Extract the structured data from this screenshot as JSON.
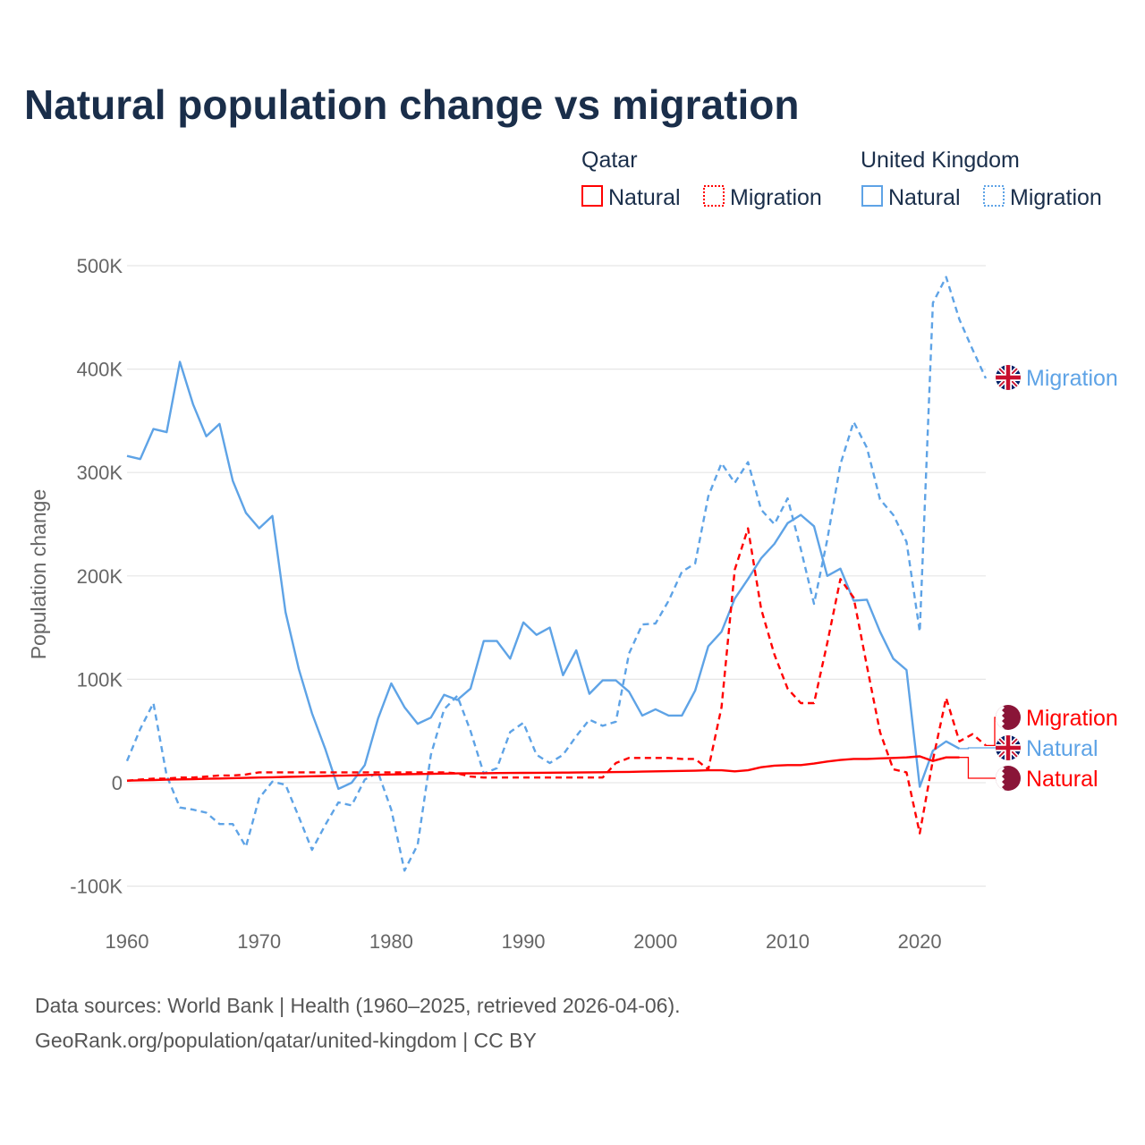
{
  "chart_data": {
    "type": "line",
    "title": "Natural population change vs migration",
    "xlabel": "",
    "ylabel": "Population change",
    "xlim": [
      1960,
      2025
    ],
    "ylim": [
      -100000,
      500000
    ],
    "x_ticks": [
      "1960",
      "1970",
      "1980",
      "1990",
      "2000",
      "2010",
      "2020"
    ],
    "y_ticks": [
      {
        "value": 500000,
        "label": "500K"
      },
      {
        "value": 400000,
        "label": "400K"
      },
      {
        "value": 300000,
        "label": "300K"
      },
      {
        "value": 200000,
        "label": "200K"
      },
      {
        "value": 100000,
        "label": "100K"
      },
      {
        "value": 0,
        "label": "0"
      },
      {
        "value": -100000,
        "label": "-100K"
      }
    ],
    "grid": true,
    "legend": {
      "placement": "top-right",
      "groups": [
        {
          "name": "Qatar",
          "items": [
            "Natural",
            "Migration"
          ]
        },
        {
          "name": "United Kingdom",
          "items": [
            "Natural",
            "Migration"
          ]
        }
      ]
    },
    "series": [
      {
        "name": "United Kingdom Migration",
        "country": "United Kingdom",
        "kind": "Migration",
        "color": "#5ea3e6",
        "dashed": true,
        "start_year": 1960,
        "end_label": "Migration",
        "values_k": [
          21,
          52,
          77,
          7,
          -24,
          -26,
          -29,
          -40,
          -40,
          -62,
          -15,
          1,
          -2,
          -33,
          -65,
          -41,
          -19,
          -22,
          3,
          10,
          -26,
          -85,
          -60,
          27,
          71,
          84,
          50,
          9,
          14,
          49,
          58,
          27,
          19,
          27,
          45,
          61,
          55,
          59,
          125,
          153,
          154,
          176,
          204,
          212,
          277,
          309,
          290,
          310,
          264,
          250,
          275,
          226,
          173,
          235,
          308,
          349,
          324,
          274,
          259,
          233,
          146,
          464,
          489,
          448,
          419,
          391
        ]
      },
      {
        "name": "United Kingdom Natural",
        "country": "United Kingdom",
        "kind": "Natural",
        "color": "#5ea3e6",
        "dashed": false,
        "start_year": 1960,
        "end_label": "Natural",
        "values_k": [
          316,
          313,
          342,
          339,
          407,
          366,
          335,
          347,
          292,
          261,
          246,
          258,
          165,
          110,
          67,
          33,
          -6,
          0,
          17,
          62,
          96,
          73,
          57,
          63,
          85,
          80,
          91,
          137,
          137,
          120,
          155,
          143,
          150,
          104,
          128,
          86,
          99,
          99,
          88,
          65,
          71,
          65,
          65,
          89,
          132,
          146,
          178,
          197,
          217,
          231,
          251,
          259,
          248,
          200,
          207,
          176,
          177,
          146,
          120,
          109,
          -4,
          31,
          40,
          33
        ]
      },
      {
        "name": "Qatar Migration",
        "country": "Qatar",
        "kind": "Migration",
        "color": "#ff0000",
        "dashed": true,
        "start_year": 1960,
        "end_label": "Migration",
        "values_k": [
          2,
          3,
          4,
          4,
          5,
          5,
          6,
          7,
          7,
          8,
          10,
          10,
          10,
          10,
          10,
          10,
          10,
          10,
          10,
          10,
          10,
          10,
          10,
          10,
          10,
          9,
          6,
          5,
          5,
          5,
          5,
          5,
          5,
          5,
          5,
          5,
          5,
          19,
          24,
          24,
          24,
          24,
          23,
          23,
          13,
          73,
          206,
          246,
          168,
          124,
          91,
          77,
          77,
          135,
          197,
          179,
          113,
          49,
          13,
          10,
          -49,
          22,
          82,
          40,
          47,
          36
        ]
      },
      {
        "name": "Qatar Natural",
        "country": "Qatar",
        "kind": "Natural",
        "color": "#ff0000",
        "dashed": false,
        "start_year": 1960,
        "end_label": "Natural",
        "values_k": [
          2,
          2.3,
          2.6,
          2.9,
          3.2,
          3.5,
          3.8,
          4.1,
          4.4,
          4.7,
          5,
          5.3,
          5.6,
          5.9,
          6.2,
          6.5,
          6.8,
          7.1,
          7.4,
          7.7,
          8,
          8.2,
          8.4,
          8.6,
          8.8,
          9,
          9.1,
          9.2,
          9.3,
          9.4,
          9.5,
          9.6,
          9.7,
          9.8,
          9.9,
          10,
          10.1,
          10.3,
          10.5,
          10.7,
          11,
          11.2,
          11.4,
          11.6,
          12,
          12,
          11,
          12,
          15,
          16.5,
          17,
          17,
          18.5,
          20.5,
          22,
          23,
          23,
          23.5,
          24,
          24.5,
          25.5,
          21,
          24.5,
          24.5
        ]
      }
    ]
  },
  "legend_swatch_colors": {
    "qatar": "#ff0000",
    "uk": "#5ea3e6"
  },
  "source_line1": "Data sources: World Bank | Health (1960–2025, retrieved 2026-04-06).",
  "source_line2": "GeoRank.org/population/qatar/united-kingdom | CC BY"
}
